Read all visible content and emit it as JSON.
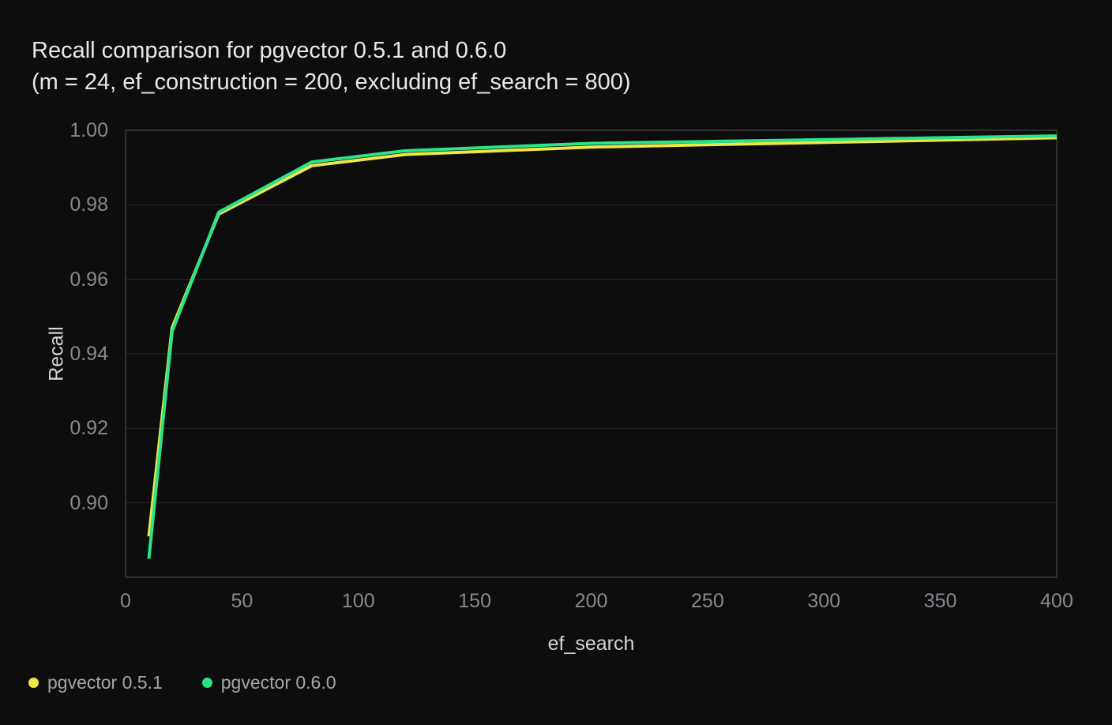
{
  "title": {
    "line1": "Recall comparison for pgvector 0.5.1 and 0.6.0",
    "line2": "(m = 24, ef_construction = 200, excluding ef_search = 800)"
  },
  "chart_data": {
    "type": "line",
    "x": [
      10,
      20,
      40,
      80,
      120,
      200,
      400
    ],
    "series": [
      {
        "name": "pgvector 0.5.1",
        "color": "#eee546",
        "values": [
          0.891,
          0.947,
          0.9775,
          0.9905,
          0.9935,
          0.9955,
          0.998
        ]
      },
      {
        "name": "pgvector 0.6.0",
        "color": "#2be389",
        "values": [
          0.885,
          0.946,
          0.978,
          0.9915,
          0.9945,
          0.9965,
          0.9985
        ]
      }
    ],
    "xlabel": "ef_search",
    "ylabel": "Recall",
    "xlim": [
      0,
      400
    ],
    "ylim": [
      0.88,
      1.0
    ],
    "x_ticks": [
      0,
      50,
      100,
      150,
      200,
      250,
      300,
      350,
      400
    ],
    "y_ticks": [
      0.9,
      0.92,
      0.94,
      0.96,
      0.98,
      1.0
    ],
    "y_tick_decimals": 2,
    "grid": "horizontal",
    "legend_position": "bottom-left"
  },
  "colors": {
    "background": "#0d0d0d",
    "title_text": "#e8e8e6",
    "gridline": "#2a2a2a",
    "plot_border": "#3c3c3c",
    "tick_label": "#87898f",
    "axis_title": "#d4d4d2",
    "legend_text": "#a3a6ab"
  }
}
